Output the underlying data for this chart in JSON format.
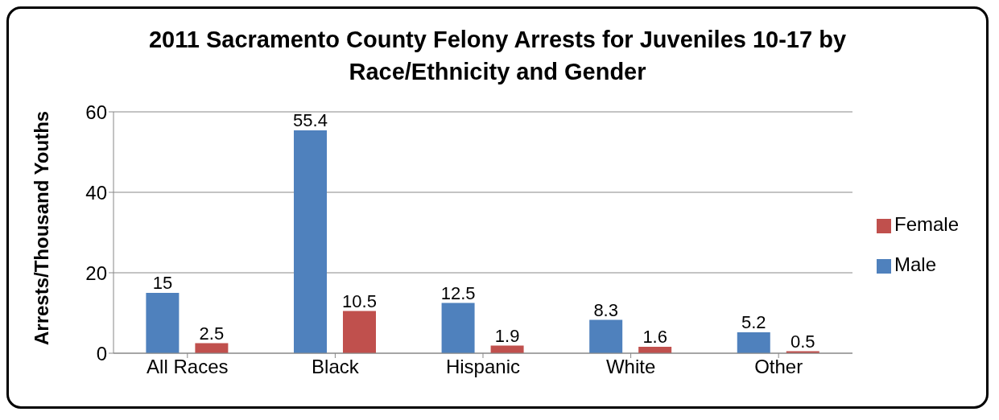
{
  "chart_data": {
    "type": "bar",
    "title": "2011 Sacramento County Felony Arrests for Juveniles 10-17 by Race/Ethnicity and Gender",
    "ylabel": "Arrests/Thousand Youths",
    "categories": [
      "All Races",
      "Black",
      "Hispanic",
      "White",
      "Other"
    ],
    "series": [
      {
        "name": "Male",
        "color": "#4f81bd",
        "values": [
          15,
          55.4,
          12.5,
          8.3,
          5.2
        ]
      },
      {
        "name": "Female",
        "color": "#c0504d",
        "values": [
          2.5,
          10.5,
          1.9,
          1.6,
          0.5
        ]
      }
    ],
    "ylim": [
      0,
      60
    ],
    "yticks": [
      0,
      20,
      40,
      60
    ],
    "grid": "y",
    "legend": "right",
    "data_labels": true
  }
}
